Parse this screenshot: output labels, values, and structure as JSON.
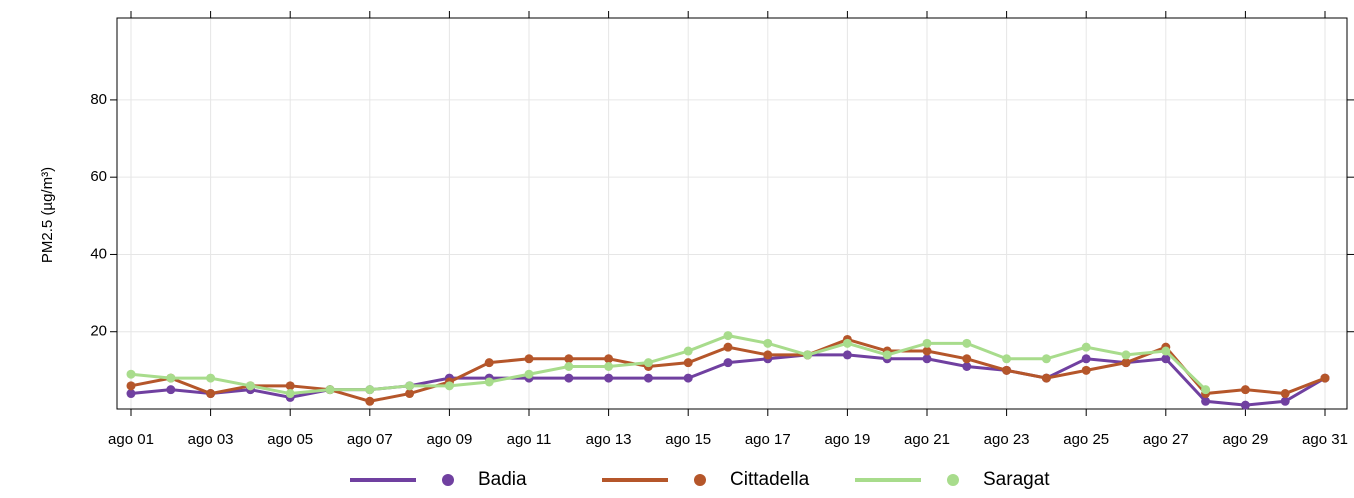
{
  "chart_data": {
    "type": "line",
    "ylabel": "PM2.5 (µg/m³)",
    "categories": [
      "ago 01",
      null,
      "ago 03",
      null,
      "ago 05",
      null,
      "ago 07",
      null,
      "ago 09",
      null,
      "ago 11",
      null,
      "ago 13",
      null,
      "ago 15",
      null,
      "ago 17",
      null,
      "ago 19",
      null,
      "ago 21",
      null,
      "ago 23",
      null,
      "ago 25",
      null,
      "ago 27",
      null,
      "ago 29",
      null,
      "ago 31"
    ],
    "series": [
      {
        "name": "Badia",
        "color": "#7040a0",
        "values": [
          4,
          5,
          4,
          5,
          3,
          5,
          5,
          6,
          8,
          8,
          8,
          8,
          8,
          8,
          8,
          12,
          13,
          14,
          14,
          13,
          13,
          11,
          10,
          8,
          13,
          12,
          13,
          2,
          1,
          2,
          8
        ]
      },
      {
        "name": "Cittadella",
        "color": "#b5562a",
        "values": [
          6,
          8,
          4,
          6,
          6,
          5,
          2,
          4,
          7,
          12,
          13,
          13,
          13,
          11,
          12,
          16,
          14,
          14,
          18,
          15,
          15,
          13,
          10,
          8,
          10,
          12,
          16,
          4,
          5,
          4,
          8
        ]
      },
      {
        "name": "Saragat",
        "color": "#a8dc8c",
        "values": [
          9,
          8,
          8,
          6,
          4,
          5,
          5,
          6,
          6,
          7,
          9,
          11,
          11,
          12,
          15,
          19,
          17,
          14,
          17,
          14,
          17,
          17,
          13,
          13,
          16,
          14,
          15,
          5,
          null,
          null,
          null
        ]
      }
    ],
    "ylim": [
      0,
      101.2
    ],
    "yticks": [
      20,
      40,
      60,
      80
    ],
    "grid": true,
    "legend": "bottom"
  }
}
